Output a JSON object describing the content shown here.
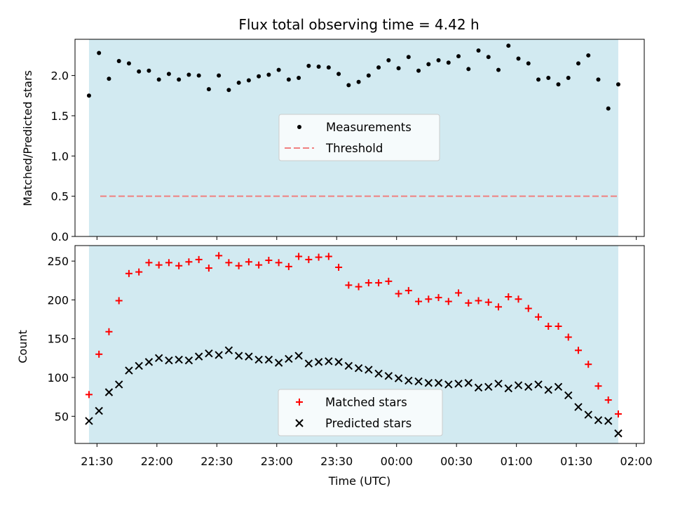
{
  "chart_data": [
    {
      "type": "scatter",
      "title": "Flux total observing time = 4.42 h",
      "ylabel": "Matched/Predicted stars",
      "xlabel": "",
      "ylim": [
        0,
        2.45
      ],
      "xlim": [
        "21:19",
        "02:04"
      ],
      "yticks": [
        "0.0",
        "0.5",
        "1.0",
        "1.5",
        "2.0"
      ],
      "x_start": "21:26",
      "x_step_minutes": 5,
      "shaded_region": [
        "21:26",
        "01:51"
      ],
      "threshold": 0.5,
      "legend": {
        "position": "center",
        "measurements_label": "Measurements",
        "threshold_label": "Threshold"
      },
      "colors": {
        "shade": "#add8e6",
        "threshold": "#f08080",
        "points": "#000000"
      },
      "grid": false,
      "series": [
        {
          "name": "Measurements",
          "values": [
            1.75,
            2.28,
            1.96,
            2.18,
            2.15,
            2.05,
            2.06,
            1.95,
            2.02,
            1.95,
            2.01,
            2.0,
            1.83,
            2.0,
            1.82,
            1.91,
            1.94,
            1.99,
            2.01,
            2.07,
            1.95,
            1.97,
            2.12,
            2.11,
            2.1,
            2.02,
            1.88,
            1.92,
            2.0,
            2.1,
            2.19,
            2.09,
            2.23,
            2.06,
            2.14,
            2.19,
            2.16,
            2.24,
            2.08,
            2.31,
            2.23,
            2.07,
            2.37,
            2.21,
            2.15,
            1.95,
            1.97,
            1.89,
            1.97,
            2.15,
            2.25,
            1.95,
            1.59,
            1.89
          ]
        }
      ]
    },
    {
      "type": "scatter",
      "title": "",
      "ylabel": "Count",
      "xlabel": "Time (UTC)",
      "ylim": [
        15,
        270
      ],
      "xlim": [
        "21:19",
        "02:04"
      ],
      "yticks": [
        "50",
        "100",
        "150",
        "200",
        "250"
      ],
      "xticks": [
        "21:30",
        "22:00",
        "22:30",
        "23:00",
        "23:30",
        "00:00",
        "00:30",
        "01:00",
        "01:30",
        "02:00"
      ],
      "x_start": "21:26",
      "x_step_minutes": 5,
      "shaded_region": [
        "21:26",
        "01:51"
      ],
      "legend": {
        "position": "lower center"
      },
      "colors": {
        "shade": "#add8e6",
        "matched": "#ff0000",
        "predicted": "#000000"
      },
      "grid": false,
      "series": [
        {
          "name": "Matched stars",
          "values": [
            78,
            130,
            159,
            199,
            234,
            236,
            248,
            245,
            248,
            244,
            249,
            252,
            241,
            257,
            248,
            244,
            249,
            245,
            251,
            248,
            243,
            256,
            252,
            255,
            256,
            242,
            219,
            217,
            222,
            222,
            224,
            208,
            212,
            198,
            201,
            203,
            198,
            209,
            196,
            199,
            197,
            191,
            204,
            201,
            189,
            178,
            166,
            166,
            152,
            135,
            117,
            89,
            71,
            53
          ]
        },
        {
          "name": "Predicted stars",
          "values": [
            44,
            57,
            81,
            91,
            109,
            115,
            120,
            125,
            122,
            123,
            122,
            127,
            131,
            129,
            135,
            128,
            127,
            123,
            123,
            119,
            124,
            128,
            118,
            120,
            121,
            120,
            115,
            112,
            110,
            105,
            102,
            99,
            96,
            95,
            93,
            93,
            91,
            92,
            93,
            87,
            88,
            92,
            86,
            90,
            88,
            91,
            84,
            88,
            77,
            62,
            52,
            45,
            44,
            28
          ]
        }
      ]
    }
  ]
}
